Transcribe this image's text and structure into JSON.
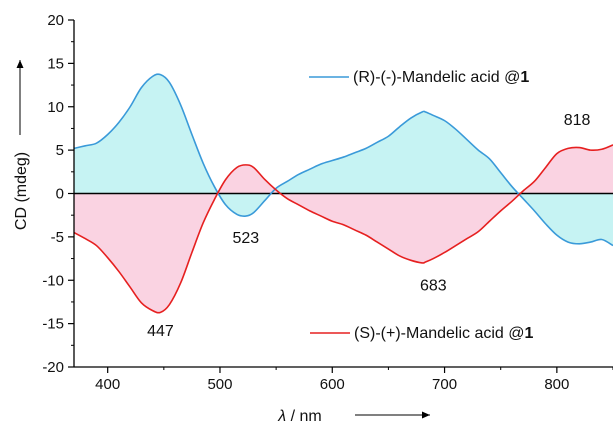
{
  "chart_data": {
    "type": "area",
    "xlabel_italic": "λ",
    "xlabel_unit": " / nm",
    "ylabel": "CD (mdeg)",
    "xlim": [
      370,
      850
    ],
    "ylim": [
      -20,
      20
    ],
    "x_ticks": [
      400,
      500,
      600,
      700,
      800
    ],
    "y_ticks": [
      -20,
      -15,
      -10,
      -5,
      0,
      5,
      10,
      15,
      20
    ],
    "fill_to_zero": true,
    "grid": false,
    "legend_placement": "inline",
    "series": [
      {
        "name_prefix": "(R)-(-)-Mandelic acid @",
        "name_bold": "1",
        "color": "#3a9ad9",
        "fill": "#c6f3f3",
        "x": [
          370,
          380,
          390,
          400,
          410,
          420,
          430,
          440,
          447,
          455,
          465,
          475,
          485,
          495,
          505,
          515,
          523,
          530,
          540,
          550,
          560,
          570,
          580,
          590,
          600,
          610,
          620,
          630,
          640,
          650,
          660,
          670,
          680,
          683,
          690,
          700,
          710,
          720,
          730,
          740,
          750,
          760,
          770,
          780,
          790,
          800,
          810,
          820,
          830,
          840,
          850
        ],
        "values": [
          5.2,
          5.5,
          5.8,
          6.8,
          8.2,
          10.0,
          12.2,
          13.5,
          13.7,
          12.8,
          10.2,
          6.8,
          3.5,
          0.8,
          -1.3,
          -2.4,
          -2.6,
          -2.2,
          -0.8,
          0.6,
          1.4,
          2.2,
          2.8,
          3.4,
          3.8,
          4.2,
          4.7,
          5.2,
          5.9,
          6.6,
          7.7,
          8.7,
          9.4,
          9.4,
          9.0,
          8.4,
          7.4,
          6.2,
          5.0,
          4.0,
          2.4,
          0.8,
          -0.6,
          -2.0,
          -3.5,
          -4.8,
          -5.6,
          -5.8,
          -5.6,
          -5.3,
          -6.0
        ]
      },
      {
        "name_prefix": "(S)-(+)-Mandelic acid @",
        "name_bold": "1",
        "color": "#e62020",
        "fill": "#fad3e2",
        "x": [
          370,
          380,
          390,
          400,
          410,
          420,
          430,
          440,
          447,
          455,
          465,
          475,
          485,
          495,
          505,
          515,
          523,
          530,
          540,
          550,
          560,
          570,
          580,
          590,
          600,
          610,
          620,
          630,
          640,
          650,
          660,
          670,
          680,
          683,
          690,
          700,
          710,
          720,
          730,
          740,
          750,
          760,
          770,
          780,
          790,
          800,
          810,
          820,
          830,
          840,
          850
        ],
        "values": [
          -4.5,
          -5.2,
          -6.0,
          -7.4,
          -9.0,
          -10.8,
          -12.6,
          -13.5,
          -13.7,
          -12.8,
          -10.3,
          -6.8,
          -3.4,
          -0.7,
          1.6,
          3.0,
          3.3,
          3.0,
          1.6,
          0.4,
          -0.6,
          -1.3,
          -2.0,
          -2.6,
          -3.2,
          -3.6,
          -4.2,
          -4.8,
          -5.6,
          -6.4,
          -7.2,
          -7.7,
          -8.0,
          -7.9,
          -7.5,
          -6.8,
          -6.0,
          -5.2,
          -4.4,
          -3.2,
          -2.0,
          -0.9,
          0.3,
          1.4,
          3.0,
          4.6,
          5.2,
          5.3,
          5.0,
          5.1,
          5.6
        ]
      }
    ],
    "annotations": [
      {
        "text": "447",
        "x": 447,
        "y": -16.4
      },
      {
        "text": "523",
        "x": 523,
        "y": -5.7
      },
      {
        "text": "683",
        "x": 690,
        "y": -11.2
      },
      {
        "text": "818",
        "x": 818,
        "y": 7.9
      }
    ]
  }
}
